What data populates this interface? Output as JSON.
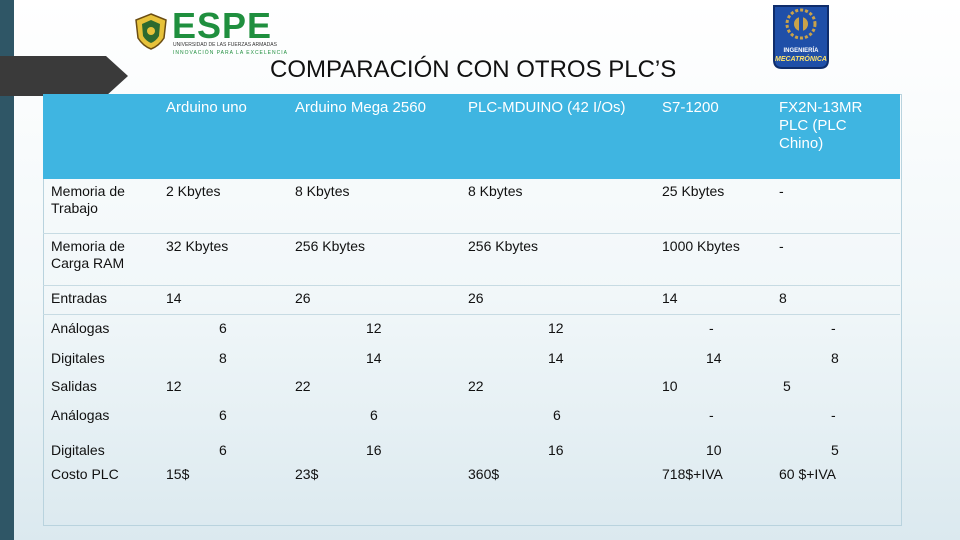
{
  "brand": {
    "name": "ESPE",
    "subline1": "UNIVERSIDAD DE LAS FUERZAS ARMADAS",
    "subline2": "INNOVACIÓN PARA LA EXCELENCIA",
    "badge_line1": "INGENIERÍA",
    "badge_line2": "MECATRÓNICA"
  },
  "title": "COMPARACIÓN CON OTROS PLC’S",
  "colors": {
    "header": "#3fb5e1",
    "brand_green": "#1f8f3e",
    "left_bar": "#2f5666"
  },
  "table": {
    "headers": [
      "Arduino uno",
      "Arduino Mega 2560",
      "PLC-MDUINO (42 I/Os)",
      "S7-1200",
      "FX2N-13MR PLC (PLC Chino)"
    ],
    "rows": {
      "memoria_trabajo": {
        "label": "Memoria de Trabajo",
        "values": [
          "2 Kbytes",
          "8 Kbytes",
          "8 Kbytes",
          "25 Kbytes",
          "-"
        ]
      },
      "memoria_carga": {
        "label": "Memoria de Carga RAM",
        "values": [
          "32 Kbytes",
          "256 Kbytes",
          "256 Kbytes",
          "1000 Kbytes",
          "-"
        ]
      },
      "entradas": {
        "label": "Entradas",
        "values": [
          "14",
          "26",
          "26",
          "14",
          "8"
        ]
      },
      "entradas_analogas": {
        "label": "Análogas",
        "values": [
          "6",
          "12",
          "12",
          "-",
          "-"
        ]
      },
      "entradas_digitales": {
        "label": "Digitales",
        "values": [
          "8",
          "14",
          "14",
          "14",
          "8"
        ]
      },
      "salidas": {
        "label": "Salidas",
        "values": [
          "12",
          "22",
          "22",
          "10",
          "5"
        ]
      },
      "salidas_analogas": {
        "label": "Análogas",
        "values": [
          "6",
          "6",
          "6",
          "-",
          "-"
        ]
      },
      "salidas_digitales": {
        "label": "Digitales",
        "values": [
          "6",
          "16",
          "16",
          "10",
          "5"
        ]
      },
      "costo": {
        "label": "Costo PLC",
        "values": [
          "15$",
          "23$",
          "360$",
          "718$+IVA",
          "60 $+IVA"
        ]
      }
    }
  }
}
